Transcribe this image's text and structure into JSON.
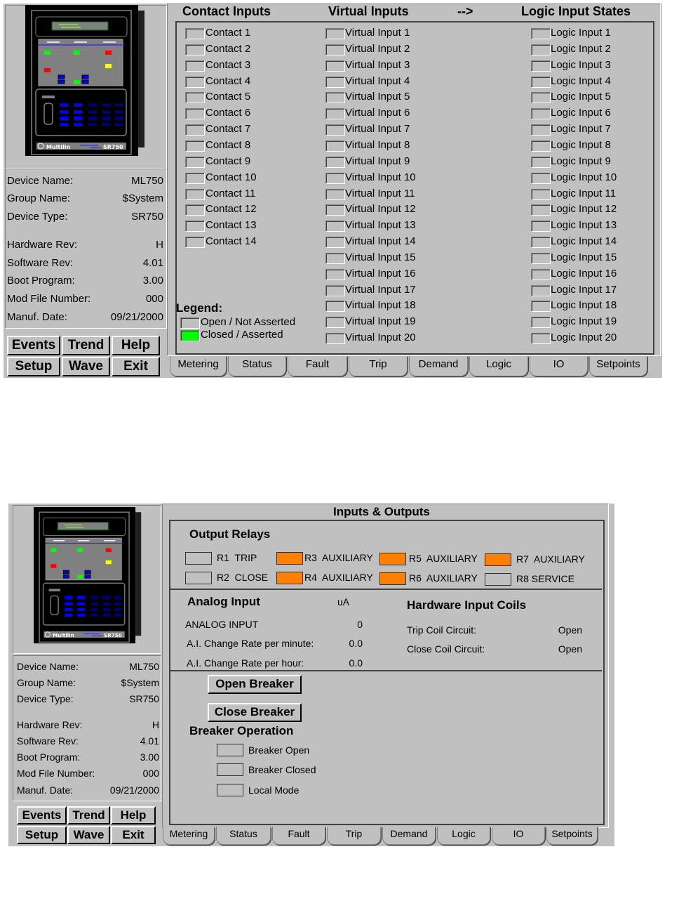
{
  "colors": {
    "panel": "#c0c0c0",
    "asserted": "#00ff00",
    "relay_on": "#ff8000",
    "relay_off": "#c0c0c0"
  },
  "device_image": {
    "logo": "Multilin",
    "model": "SR750"
  },
  "top": {
    "device_info": [
      {
        "label": "Device Name:",
        "value": "ML750"
      },
      {
        "label": "Group Name:",
        "value": "$System"
      },
      {
        "label": "Device Type:",
        "value": "SR750"
      },
      {
        "label": "Hardware Rev:",
        "value": "H"
      },
      {
        "label": "Software Rev:",
        "value": "4.01"
      },
      {
        "label": "Boot Program:",
        "value": "3.00"
      },
      {
        "label": "Mod File Number:",
        "value": "000"
      },
      {
        "label": "Manuf. Date:",
        "value": "09/21/2000"
      }
    ],
    "buttons": [
      "Events",
      "Trend",
      "Help",
      "Setup",
      "Wave",
      "Exit"
    ],
    "headers": {
      "contact": "Contact Inputs",
      "virtual": "Virtual Inputs",
      "arrow": "-->",
      "logic": "Logic Input States"
    },
    "contacts": [
      "Contact 1",
      "Contact 2",
      "Contact 3",
      "Contact 4",
      "Contact 5",
      "Contact 6",
      "Contact 7",
      "Contact 8",
      "Contact 9",
      "Contact 10",
      "Contact 11",
      "Contact 12",
      "Contact 13",
      "Contact 14"
    ],
    "virtual": [
      "Virtual Input 1",
      "Virtual Input 2",
      "Virtual Input 3",
      "Virtual Input 4",
      "Virtual Input 5",
      "Virtual Input 6",
      "Virtual Input 7",
      "Virtual Input 8",
      "Virtual Input 9",
      "Virtual Input 10",
      "Virtual Input 11",
      "Virtual Input 12",
      "Virtual Input 13",
      "Virtual Input 14",
      "Virtual Input 15",
      "Virtual Input 16",
      "Virtual Input 17",
      "Virtual Input 18",
      "Virtual Input 19",
      "Virtual Input 20"
    ],
    "logic": [
      "Logic Input 1",
      "Logic Input 2",
      "Logic Input 3",
      "Logic Input 4",
      "Logic Input 5",
      "Logic Input 6",
      "Logic Input 7",
      "Logic Input 8",
      "Logic Input 9",
      "Logic Input 10",
      "Logic Input 11",
      "Logic Input 12",
      "Logic Input 13",
      "Logic Input 14",
      "Logic Input 15",
      "Logic Input 16",
      "Logic Input 17",
      "Logic Input 18",
      "Logic Input 19",
      "Logic Input 20"
    ],
    "legend": {
      "title": "Legend:",
      "open": "Open / Not Asserted",
      "closed": "Closed / Asserted"
    },
    "tabs": [
      "Metering",
      "Status",
      "Fault",
      "Trip",
      "Demand",
      "Logic",
      "IO",
      "Setpoints"
    ]
  },
  "bottom": {
    "device_info": [
      {
        "label": "Device Name:",
        "value": "ML750"
      },
      {
        "label": "Group Name:",
        "value": "$System"
      },
      {
        "label": "Device Type:",
        "value": "SR750"
      },
      {
        "label": "Hardware Rev:",
        "value": "H"
      },
      {
        "label": "Software Rev:",
        "value": "4.01"
      },
      {
        "label": "Boot Program:",
        "value": "3.00"
      },
      {
        "label": "Mod File Number:",
        "value": "000"
      },
      {
        "label": "Manuf. Date:",
        "value": "09/21/2000"
      }
    ],
    "buttons": [
      "Events",
      "Trend",
      "Help",
      "Setup",
      "Wave",
      "Exit"
    ],
    "title": "Inputs & Outputs",
    "output_relays": {
      "title": "Output Relays",
      "relays": [
        {
          "label": "R1  TRIP",
          "on": false
        },
        {
          "label": "R2  CLOSE",
          "on": false
        },
        {
          "label": "R3  AUXILIARY",
          "on": true
        },
        {
          "label": "R4  AUXILIARY",
          "on": true
        },
        {
          "label": "R5  AUXILIARY",
          "on": true
        },
        {
          "label": "R6  AUXILIARY",
          "on": true
        },
        {
          "label": "R7  AUXILIARY",
          "on": true
        },
        {
          "label": "R8 SERVICE",
          "on": false
        }
      ]
    },
    "analog": {
      "title": "Analog Input",
      "unit": "uA",
      "rows": [
        {
          "label": "ANALOG INPUT",
          "value": "0"
        },
        {
          "label": "A.I. Change Rate per minute:",
          "value": "0.0"
        },
        {
          "label": "A.I. Change Rate per hour:",
          "value": "0.0"
        }
      ]
    },
    "coils": {
      "title": "Hardware Input Coils",
      "rows": [
        {
          "label": "Trip Coil Circuit:",
          "value": "Open"
        },
        {
          "label": "Close Coil Circuit:",
          "value": "Open"
        }
      ]
    },
    "breaker": {
      "open_button": "Open Breaker",
      "close_button": "Close Breaker",
      "title": "Breaker Operation",
      "items": [
        "Breaker Open",
        "Breaker Closed",
        "Local Mode"
      ]
    },
    "tabs": [
      "Metering",
      "Status",
      "Fault",
      "Trip",
      "Demand",
      "Logic",
      "IO",
      "Setpoints"
    ]
  }
}
